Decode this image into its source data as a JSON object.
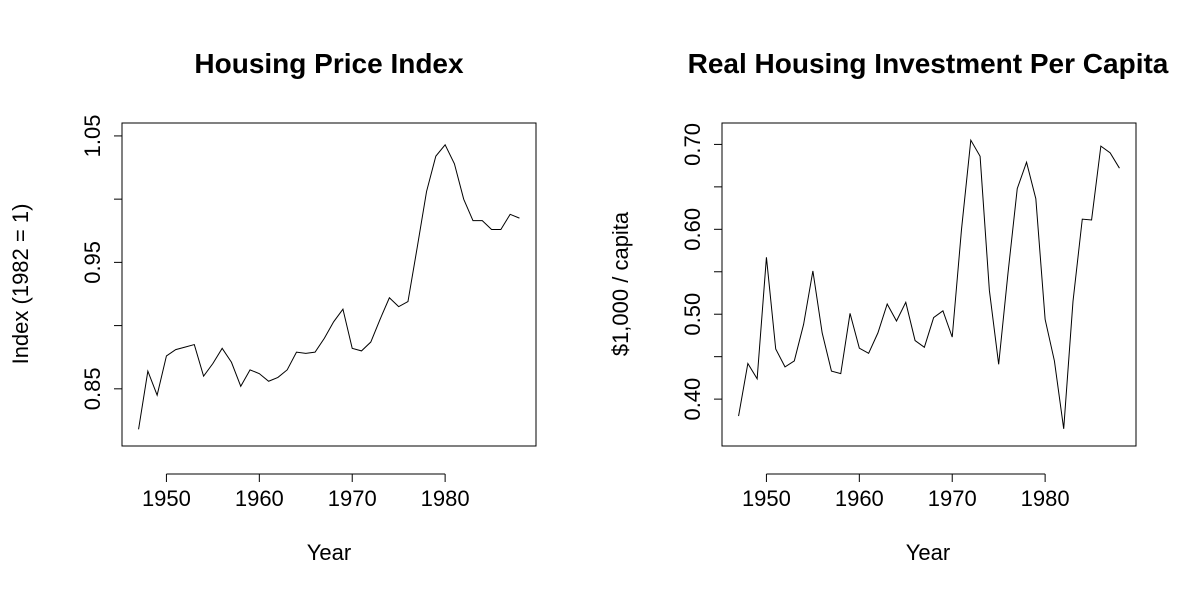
{
  "chart_data": [
    {
      "type": "line",
      "title": "Housing Price Index",
      "xlabel": "Year",
      "ylabel": "Index (1982 = 1)",
      "xlim": [
        1947,
        1988
      ],
      "ylim": [
        0.815,
        1.05
      ],
      "xticks": [
        1950,
        1960,
        1970,
        1980
      ],
      "xtick_labels": [
        "1950",
        "1960",
        "1970",
        "1980"
      ],
      "yticks": [
        0.85,
        0.9,
        0.95,
        1.0,
        1.05
      ],
      "ytick_labels": [
        "0.85",
        "",
        "0.95",
        "",
        "1.05"
      ],
      "grid": false,
      "x": [
        1947,
        1948,
        1949,
        1950,
        1951,
        1952,
        1953,
        1954,
        1955,
        1956,
        1957,
        1958,
        1959,
        1960,
        1961,
        1962,
        1963,
        1964,
        1965,
        1966,
        1967,
        1968,
        1969,
        1970,
        1971,
        1972,
        1973,
        1974,
        1975,
        1976,
        1977,
        1978,
        1979,
        1980,
        1981,
        1982,
        1983,
        1984,
        1985,
        1986,
        1987,
        1988
      ],
      "y": [
        0.818,
        0.864,
        0.845,
        0.876,
        0.881,
        0.883,
        0.885,
        0.86,
        0.87,
        0.882,
        0.871,
        0.852,
        0.865,
        0.862,
        0.856,
        0.859,
        0.865,
        0.879,
        0.878,
        0.879,
        0.89,
        0.903,
        0.913,
        0.882,
        0.88,
        0.887,
        0.905,
        0.922,
        0.915,
        0.919,
        0.962,
        1.006,
        1.034,
        1.043,
        1.028,
        1.0,
        0.983,
        0.983,
        0.976,
        0.976,
        0.988,
        0.985
      ]
    },
    {
      "type": "line",
      "title": "Real Housing Investment Per Capita",
      "xlabel": "Year",
      "ylabel": "$1,000 / capita",
      "xlim": [
        1947,
        1988
      ],
      "ylim": [
        0.36,
        0.71
      ],
      "xticks": [
        1950,
        1960,
        1970,
        1980
      ],
      "xtick_labels": [
        "1950",
        "1960",
        "1970",
        "1980"
      ],
      "yticks": [
        0.4,
        0.45,
        0.5,
        0.55,
        0.6,
        0.65,
        0.7
      ],
      "ytick_labels": [
        "0.40",
        "",
        "0.50",
        "",
        "0.60",
        "",
        "0.70"
      ],
      "grid": false,
      "x": [
        1947,
        1948,
        1949,
        1950,
        1951,
        1952,
        1953,
        1954,
        1955,
        1956,
        1957,
        1958,
        1959,
        1960,
        1961,
        1962,
        1963,
        1964,
        1965,
        1966,
        1967,
        1968,
        1969,
        1970,
        1971,
        1972,
        1973,
        1974,
        1975,
        1976,
        1977,
        1978,
        1979,
        1980,
        1981,
        1982,
        1983,
        1984,
        1985,
        1986,
        1987,
        1988
      ],
      "y": [
        0.38,
        0.442,
        0.424,
        0.567,
        0.459,
        0.438,
        0.445,
        0.488,
        0.551,
        0.478,
        0.433,
        0.43,
        0.501,
        0.46,
        0.454,
        0.478,
        0.512,
        0.492,
        0.514,
        0.469,
        0.461,
        0.496,
        0.504,
        0.473,
        0.6,
        0.705,
        0.686,
        0.528,
        0.441,
        0.548,
        0.648,
        0.679,
        0.636,
        0.494,
        0.445,
        0.365,
        0.515,
        0.612,
        0.611,
        0.698,
        0.69,
        0.672
      ]
    }
  ]
}
